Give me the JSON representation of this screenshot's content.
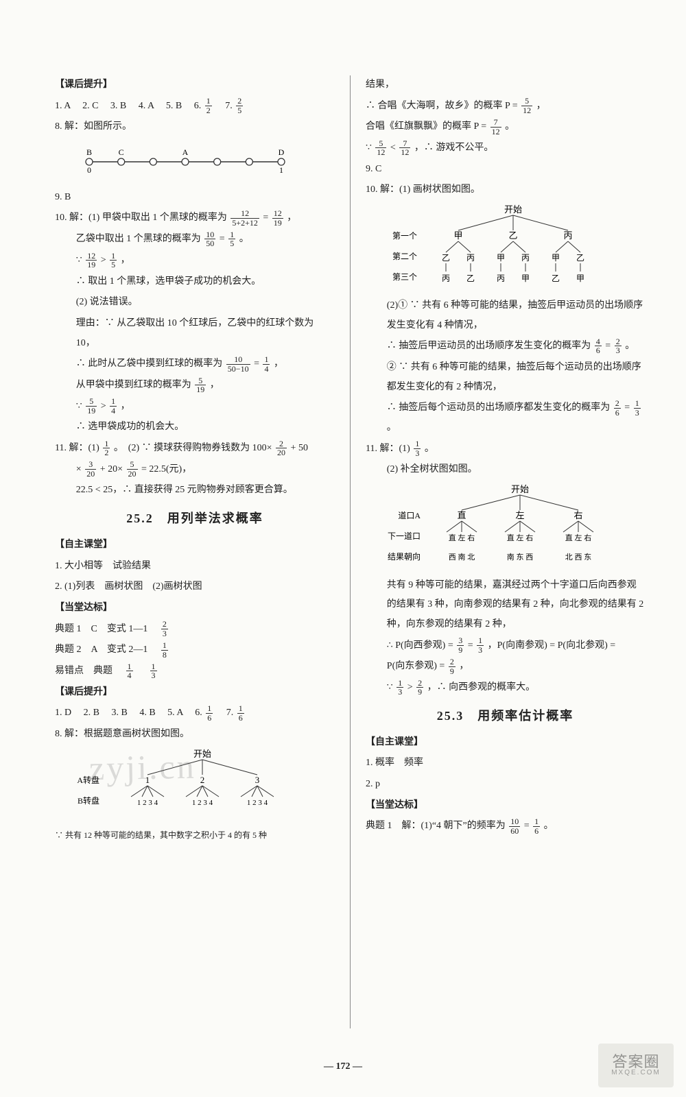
{
  "page_number": "172",
  "watermark_main": "zyji.cn",
  "watermark_corner": {
    "l1": "答案圈",
    "l2": "MXQE.COM"
  },
  "left": {
    "header_kehou": "【课后提升】",
    "q1to7": {
      "q1": "1. A",
      "q2": "2. C",
      "q3": "3. B",
      "q4": "4. A",
      "q5": "5. B",
      "q6_pre": "6. ",
      "q6_num": "1",
      "q6_den": "2",
      "q7_pre": "7. ",
      "q7_num": "2",
      "q7_den": "5"
    },
    "q8": "8. 解：如图所示。",
    "numberline": {
      "labelsTop": [
        "B",
        "C",
        "",
        "A",
        "",
        "",
        "D"
      ],
      "labelsBottom": [
        "0",
        "",
        "",
        "",
        "",
        "",
        "1"
      ],
      "count": 7
    },
    "q9": "9. B",
    "q10_head": "10. 解：(1) 甲袋中取出 1 个黑球的概率为 ",
    "q10_frac1": {
      "n": "12",
      "d": "5+2+12"
    },
    "q10_eq": " = ",
    "q10_frac2": {
      "n": "12",
      "d": "19"
    },
    "q10_tail": "，",
    "q10_l2_pre": "乙袋中取出 1 个黑球的概率为 ",
    "q10_l2_f": {
      "n": "10",
      "d": "50"
    },
    "q10_l2_eq": " = ",
    "q10_l2_f2": {
      "n": "1",
      "d": "5"
    },
    "q10_l2_dot": "。",
    "q10_l3_pre": "∵ ",
    "q10_l3_f1": {
      "n": "12",
      "d": "19"
    },
    "q10_l3_mid": " > ",
    "q10_l3_f2": {
      "n": "1",
      "d": "5"
    },
    "q10_l3_tail": "，",
    "q10_l4": "∴ 取出 1 个黑球，选甲袋子成功的机会大。",
    "q10_l5": "(2) 说法错误。",
    "q10_l6": "理由：∵ 从乙袋取出 10 个红球后，乙袋中的红球个数为 10，",
    "q10_l7_pre": "∴ 此时从乙袋中摸到红球的概率为 ",
    "q10_l7_f1": {
      "n": "10",
      "d": "50−10"
    },
    "q10_l7_eq": " = ",
    "q10_l7_f2": {
      "n": "1",
      "d": "4"
    },
    "q10_l7_tail": "，",
    "q10_l8_pre": "从甲袋中摸到红球的概率为 ",
    "q10_l8_f": {
      "n": "5",
      "d": "19"
    },
    "q10_l8_tail": "，",
    "q10_l9_pre": "∵ ",
    "q10_l9_f1": {
      "n": "5",
      "d": "19"
    },
    "q10_l9_mid": " > ",
    "q10_l9_f2": {
      "n": "1",
      "d": "4"
    },
    "q10_l9_tail": "，",
    "q10_l10": "∴ 选甲袋成功的机会大。",
    "q11_pre": "11. 解：(1) ",
    "q11_f": {
      "n": "1",
      "d": "2"
    },
    "q11_mid": "。　(2) ∵ 摸球获得购物券钱数为 100× ",
    "q11_f2": {
      "n": "2",
      "d": "20"
    },
    "q11_mid2": " + 50",
    "q11_line2_pre": "× ",
    "q11_f3": {
      "n": "3",
      "d": "20"
    },
    "q11_mid3": " + 20× ",
    "q11_f4": {
      "n": "5",
      "d": "20"
    },
    "q11_mid4": " = 22.5(元)，",
    "q11_line3": "22.5 < 25，∴ 直接获得 25 元购物券对顾客更合算。",
    "section_25_2": "25.2　用列举法求概率",
    "zizhu_head": "【自主课堂】",
    "zizhu1": "1. 大小相等　试验结果",
    "zizhu2": "2. (1)列表　画树状图　(2)画树状图",
    "dangtang_head": "【当堂达标】",
    "dt1_pre": "典题 1　C　变式 1—1　",
    "dt1_f": {
      "n": "2",
      "d": "3"
    },
    "dt2_pre": "典题 2　A　变式 2—1　",
    "dt2_f": {
      "n": "1",
      "d": "8"
    },
    "dt3_pre": "易错点　典题　",
    "dt3_f1": {
      "n": "1",
      "d": "4"
    },
    "dt3_mid": "　",
    "dt3_f2": {
      "n": "1",
      "d": "3"
    },
    "kehou2_head": "【课后提升】",
    "kh2_line": {
      "q1": "1. D",
      "q2": "2. B",
      "q3": "3. B",
      "q4": "4. B",
      "q5": "5. A",
      "q6_pre": "6. ",
      "q6_num": "1",
      "q6_den": "6",
      "q7_pre": "7. ",
      "q7_num": "1",
      "q7_den": "6"
    },
    "kh2_q8": "8. 解：根据题意画树状图如图。",
    "tree8": {
      "root": "开始",
      "row1_label": "A转盘",
      "row1": [
        "1",
        "2",
        "3"
      ],
      "row2_label": "B转盘",
      "row2_group": "1 2 3 4",
      "note": "∵ 共有 12 种等可能的结果，其中数字之积小于 4 的有 5 种"
    }
  },
  "right": {
    "l1": "结果，",
    "l2_pre": "∴ 合唱《大海啊，故乡》的概率 P = ",
    "l2_f": {
      "n": "5",
      "d": "12"
    },
    "l2_tail": "，",
    "l3_pre": "合唱《红旗飘飘》的概率 P = ",
    "l3_f": {
      "n": "7",
      "d": "12"
    },
    "l3_tail": "。",
    "l4_pre": "∵ ",
    "l4_f1": {
      "n": "5",
      "d": "12"
    },
    "l4_mid": " < ",
    "l4_f2": {
      "n": "7",
      "d": "12"
    },
    "l4_tail": "，∴ 游戏不公平。",
    "q9": "9. C",
    "q10_head": "10. 解：(1) 画树状图如图。",
    "tree10": {
      "root": "开始",
      "row_labels": [
        "第一个",
        "第二个",
        "第三个"
      ],
      "row1": [
        "甲",
        "乙",
        "丙"
      ],
      "row2": [
        [
          "乙",
          "丙"
        ],
        [
          "甲",
          "丙"
        ],
        [
          "甲",
          "乙"
        ]
      ],
      "row3": [
        [
          "丙",
          "乙"
        ],
        [
          "丙",
          "甲"
        ],
        [
          "乙",
          "甲"
        ]
      ]
    },
    "q10_2a": "(2)① ∵ 共有 6 种等可能的结果，抽签后甲运动员的出场顺序发生变化有 4 种情况，",
    "q10_2b_pre": "∴ 抽签后甲运动员的出场顺序发生变化的概率为 ",
    "q10_2b_f1": {
      "n": "4",
      "d": "6"
    },
    "q10_2b_eq": " = ",
    "q10_2b_f2": {
      "n": "2",
      "d": "3"
    },
    "q10_2b_tail": "。",
    "q10_2c": "② ∵ 共有 6 种等可能的结果，抽签后每个运动员的出场顺序都发生变化的有 2 种情况，",
    "q10_2d_pre": "∴ 抽签后每个运动员的出场顺序都发生变化的概率为 ",
    "q10_2d_f1": {
      "n": "2",
      "d": "6"
    },
    "q10_2d_eq": " = ",
    "q10_2d_f2": {
      "n": "1",
      "d": "3"
    },
    "q10_2d_tail": "。",
    "q11_pre": "11. 解：(1) ",
    "q11_f": {
      "n": "1",
      "d": "3"
    },
    "q11_tail": "。",
    "q11_2": "(2) 补全树状图如图。",
    "tree11": {
      "root": "开始",
      "labels": [
        "道口A",
        "下一道口",
        "结果朝向"
      ],
      "row1": [
        "直",
        "左",
        "右"
      ],
      "row2_group": "直 左 右",
      "row3": [
        "西 南 北",
        "南 东 西",
        "北 西 东"
      ]
    },
    "q11_body1": "共有 9 种等可能的结果，嘉淇经过两个十字道口后向西参观的结果有 3 种，向南参观的结果有 2 种，向北参观的结果有 2 种，向东参观的结果有 2 种，",
    "q11_body2_pre": "∴ P(向西参观) = ",
    "q11_body2_f1": {
      "n": "3",
      "d": "9"
    },
    "q11_body2_eq": " = ",
    "q11_body2_f2": {
      "n": "1",
      "d": "3"
    },
    "q11_body2_mid": "，P(向南参观) = P(向北参观) =",
    "q11_body3_pre": "P(向东参观) = ",
    "q11_body3_f": {
      "n": "2",
      "d": "9"
    },
    "q11_body3_tail": "，",
    "q11_body4_pre": "∵ ",
    "q11_body4_f1": {
      "n": "1",
      "d": "3"
    },
    "q11_body4_mid": " > ",
    "q11_body4_f2": {
      "n": "2",
      "d": "9"
    },
    "q11_body4_tail": "，∴ 向西参观的概率大。",
    "section_25_3": "25.3　用频率估计概率",
    "zizhu_head": "【自主课堂】",
    "zizhu1": "1. 概率　频率",
    "zizhu2": "2. p",
    "dangtang_head": "【当堂达标】",
    "dt1_pre": "典题 1　解：(1)“4 朝下”的频率为 ",
    "dt1_f1": {
      "n": "10",
      "d": "60"
    },
    "dt1_eq": " = ",
    "dt1_f2": {
      "n": "1",
      "d": "6"
    },
    "dt1_tail": "。"
  },
  "colors": {
    "page_bg": "#fbfbf8",
    "text": "#222222",
    "rule": "#888888",
    "diagram_stroke": "#333333"
  }
}
